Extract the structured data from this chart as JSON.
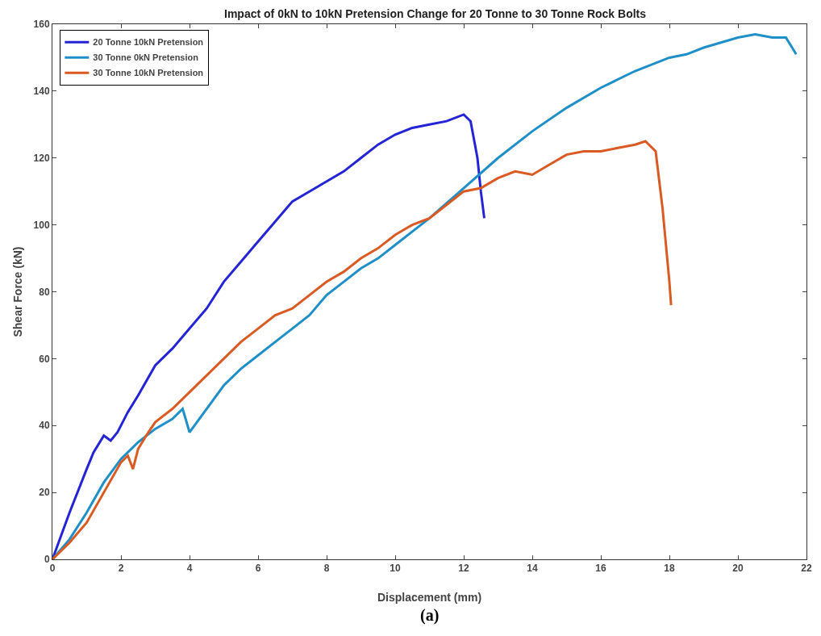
{
  "chart_data": {
    "type": "line",
    "title": "Impact of 0kN to 10kN Pretension Change for 20 Tonne to 30 Tonne Rock Bolts",
    "xlabel": "Displacement (mm)",
    "ylabel": "Shear Force (kN)",
    "annotations": [
      "(a)"
    ],
    "xlim": [
      0,
      22
    ],
    "xticks": [
      0,
      2,
      4,
      6,
      8,
      10,
      12,
      14,
      16,
      18,
      20,
      22
    ],
    "ylim": [
      0,
      160
    ],
    "yticks": [
      0,
      20,
      40,
      60,
      80,
      100,
      120,
      140,
      160
    ],
    "grid": false,
    "legend": "top left",
    "marker": "none",
    "line_style": "solid",
    "series": [
      {
        "name": "20 Tonne 10kN Pretension",
        "color": "#2424d4",
        "x": [
          0,
          0.5,
          1,
          1.2,
          1.5,
          1.7,
          1.9,
          2.2,
          2.5,
          3,
          3.2,
          3.5,
          4,
          4.5,
          5,
          5.5,
          6,
          6.5,
          7,
          7.5,
          8,
          8.5,
          9,
          9.5,
          10,
          10.5,
          11,
          11.5,
          12,
          12.2,
          12.4,
          12.5,
          12.6
        ],
        "values": [
          0,
          14,
          27,
          32,
          37,
          35.5,
          38,
          44,
          49,
          58,
          60,
          63,
          69,
          75,
          83,
          89,
          95,
          101,
          107,
          110,
          113,
          116,
          120,
          124,
          127,
          129,
          130,
          131,
          133,
          131,
          120,
          110,
          102
        ]
      },
      {
        "name": "30 Tonne 0kN Pretension",
        "color": "#1f8fc8",
        "x": [
          0,
          0.5,
          1,
          1.5,
          2,
          2.5,
          3,
          3.5,
          3.8,
          4,
          4.5,
          5,
          5.5,
          6,
          6.5,
          7,
          7.5,
          8,
          8.5,
          9,
          9.5,
          10,
          11,
          12,
          13,
          14,
          15,
          16,
          17,
          18,
          18.5,
          19,
          20,
          20.5,
          21,
          21.4,
          21.7
        ],
        "values": [
          0,
          6,
          14,
          23,
          30,
          35,
          39,
          42,
          45,
          38,
          45,
          52,
          57,
          61,
          65,
          69,
          73,
          79,
          83,
          87,
          90,
          94,
          102,
          111,
          120,
          128,
          135,
          141,
          146,
          150,
          151,
          153,
          156,
          157,
          156,
          156,
          151
        ]
      },
      {
        "name": "30 Tonne 10kN Pretension",
        "color": "#d95a22",
        "x": [
          0,
          0.5,
          1,
          1.5,
          2,
          2.2,
          2.35,
          2.5,
          2.8,
          3,
          3.5,
          4,
          4.5,
          5,
          5.5,
          6,
          6.5,
          7,
          7.5,
          8,
          8.5,
          9,
          9.5,
          10,
          10.5,
          11,
          11.5,
          12,
          12.5,
          13,
          13.5,
          14,
          14.5,
          15,
          15.5,
          16,
          16.5,
          17,
          17.3,
          17.6,
          17.8,
          18,
          18.05
        ],
        "values": [
          0,
          5,
          11,
          20,
          29,
          31,
          27,
          33,
          38,
          41,
          45,
          50,
          55,
          60,
          65,
          69,
          73,
          75,
          79,
          83,
          86,
          90,
          93,
          97,
          100,
          102,
          106,
          110,
          111,
          114,
          116,
          115,
          118,
          121,
          122,
          122,
          123,
          124,
          125,
          122,
          105,
          83,
          76
        ]
      }
    ]
  }
}
